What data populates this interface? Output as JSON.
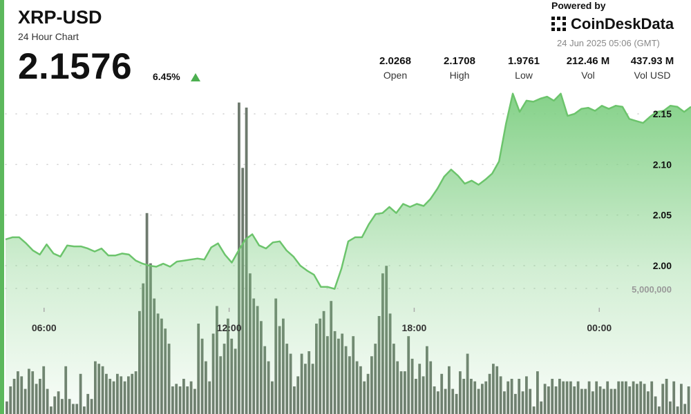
{
  "header": {
    "pair": "XRP-USD",
    "subtitle": "24 Hour Chart",
    "price": "2.1576",
    "change": "6.45%",
    "change_direction": "up"
  },
  "branding": {
    "powered_by": "Powered by",
    "name": "CoinDeskData",
    "timestamp": "24 Jun 2025 05:06 (GMT)"
  },
  "stats": [
    {
      "value": "2.0268",
      "label": "Open"
    },
    {
      "value": "2.1708",
      "label": "High"
    },
    {
      "value": "1.9761",
      "label": "Low"
    },
    {
      "value": "212.46 M",
      "label": "Vol"
    },
    {
      "value": "437.93 M",
      "label": "Vol USD"
    }
  ],
  "colors": {
    "accent": "#5cb85c",
    "line": "#6cc46c",
    "area_top": "#7fcf83",
    "volume_bar": "#6e7a6e",
    "text": "#111111"
  },
  "chart_data": {
    "type": "line",
    "price_axis": {
      "ticks": [
        2.15,
        2.1,
        2.05,
        2.0
      ],
      "tick_labels": [
        "2.15",
        "2.10",
        "2.05",
        "2.00"
      ],
      "range": [
        1.965,
        2.19
      ]
    },
    "volume_axis": {
      "tick_label": "5,000,000",
      "tick_value": 5000000,
      "max": 13000000
    },
    "x_labels": [
      "06:00",
      "12:00",
      "18:00",
      "00:00"
    ],
    "x_label_index": [
      3,
      30,
      57,
      84
    ],
    "price_series": [
      2.026,
      2.028,
      2.028,
      2.022,
      2.015,
      2.011,
      2.021,
      2.012,
      2.009,
      2.02,
      2.019,
      2.019,
      2.017,
      2.014,
      2.017,
      2.01,
      2.01,
      2.012,
      2.011,
      2.005,
      2.002,
      2.0,
      1.999,
      2.002,
      1.999,
      2.004,
      2.005,
      2.006,
      2.007,
      2.006,
      2.018,
      2.022,
      2.011,
      2.003,
      2.015,
      2.026,
      2.031,
      2.02,
      2.017,
      2.023,
      2.024,
      2.015,
      2.009,
      2.0,
      1.995,
      1.991,
      1.979,
      1.979,
      1.977,
      1.997,
      2.024,
      2.028,
      2.028,
      2.041,
      2.051,
      2.052,
      2.058,
      2.052,
      2.061,
      2.058,
      2.061,
      2.059,
      2.066,
      2.076,
      2.088,
      2.095,
      2.089,
      2.081,
      2.084,
      2.08,
      2.085,
      2.091,
      2.103,
      2.14,
      2.17,
      2.152,
      2.163,
      2.162,
      2.165,
      2.167,
      2.163,
      2.17,
      2.148,
      2.15,
      2.155,
      2.156,
      2.153,
      2.158,
      2.155,
      2.158,
      2.157,
      2.145,
      2.143,
      2.141,
      2.147,
      2.152,
      2.153,
      2.158,
      2.157,
      2.152,
      2.157
    ],
    "volume_series": [
      500000,
      1100000,
      1400000,
      1700000,
      1500000,
      1000000,
      1800000,
      1700000,
      1200000,
      1400000,
      1900000,
      1000000,
      300000,
      700000,
      900000,
      600000,
      1900000,
      600000,
      400000,
      400000,
      1600000,
      300000,
      800000,
      600000,
      2100000,
      2000000,
      1900000,
      1600000,
      1400000,
      1300000,
      1600000,
      1500000,
      1300000,
      1500000,
      1600000,
      1700000,
      4100000,
      5200000,
      8000000,
      6000000,
      4600000,
      4000000,
      3800000,
      3400000,
      2800000,
      1100000,
      1200000,
      1100000,
      1400000,
      1100000,
      1300000,
      1000000,
      3600000,
      3000000,
      2100000,
      1300000,
      3200000,
      4300000,
      2300000,
      2800000,
      3800000,
      3000000,
      2600000,
      12400000,
      9800000,
      12200000,
      5600000,
      4600000,
      4300000,
      3700000,
      2700000,
      2100000,
      1300000,
      4600000,
      3500000,
      3800000,
      2800000,
      2400000,
      1100000,
      1500000,
      2400000,
      2000000,
      2500000,
      2000000,
      3600000,
      3800000,
      4100000,
      3100000,
      4500000,
      3300000,
      3000000,
      3200000,
      2700000,
      2300000,
      3100000,
      2100000,
      1900000,
      1300000,
      1600000,
      2300000,
      2800000,
      3900000,
      5600000,
      5900000,
      4000000,
      2800000,
      2100000,
      1700000,
      1700000,
      3100000,
      2200000,
      1400000,
      2000000,
      1500000,
      2700000,
      2100000,
      1100000,
      900000,
      1600000,
      1000000,
      1900000,
      1000000,
      800000,
      1700000,
      1400000,
      2400000,
      1400000,
      1300000,
      1000000,
      1200000,
      1300000,
      1600000,
      2000000,
      1900000,
      1500000,
      900000,
      1300000,
      1400000,
      800000,
      1400000,
      900000,
      1500000,
      1000000,
      300000,
      1700000,
      500000,
      1200000,
      1100000,
      1400000,
      1100000,
      1400000,
      1300000,
      1300000,
      1300000,
      1100000,
      1300000,
      1000000,
      1000000,
      1300000,
      900000,
      1300000,
      1100000,
      1000000,
      1300000,
      1000000,
      1000000,
      1300000,
      1300000,
      1300000,
      1100000,
      1300000,
      1200000,
      1300000,
      1200000,
      900000,
      1300000,
      700000,
      300000,
      1200000,
      1400000,
      500000,
      1300000,
      300000,
      1200000,
      400000,
      1100000
    ]
  }
}
